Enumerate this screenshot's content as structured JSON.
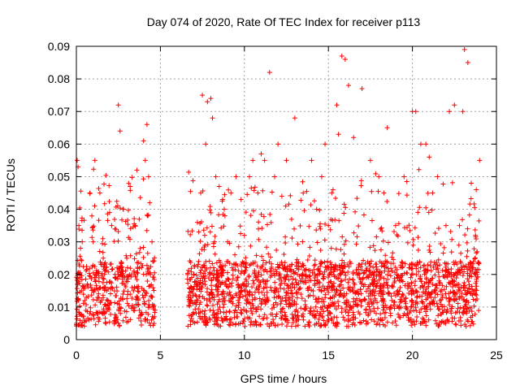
{
  "chart_data": {
    "type": "scatter",
    "title": "Day 074 of 2020, Rate Of TEC Index for receiver p113",
    "xlabel": "GPS time / hours",
    "ylabel": "ROTI / TECUs",
    "xlim": [
      0,
      25
    ],
    "ylim": [
      0,
      0.09
    ],
    "xticks": [
      "0",
      "5",
      "10",
      "15",
      "20",
      "25"
    ],
    "yticks": [
      "0",
      "0.01",
      "0.02",
      "0.03",
      "0.04",
      "0.05",
      "0.06",
      "0.07",
      "0.08",
      "0.09"
    ],
    "grid": true,
    "marker": "plus",
    "color": "#ff0000",
    "data_gap_hours": [
      4.7,
      6.6
    ],
    "series": [
      {
        "x": [
          0.05,
          0.1,
          0.15,
          0.2,
          0.3,
          0.35,
          0.5,
          0.8,
          1.0,
          1.1,
          1.2,
          1.4,
          1.6,
          1.8,
          2.1,
          2.3,
          2.5,
          2.6,
          2.7,
          2.8,
          3.0,
          3.2,
          3.4,
          3.5,
          3.6,
          3.8,
          4.0,
          4.1,
          4.2,
          4.3,
          4.4,
          4.5,
          6.8,
          7.0,
          7.2,
          7.4,
          7.5,
          7.7,
          7.8,
          8.0,
          8.1,
          8.3,
          8.5,
          8.8,
          9.0,
          9.2,
          9.5,
          9.8,
          10.0,
          10.3,
          10.5,
          10.8,
          11.0,
          11.2,
          11.5,
          11.8,
          12.0,
          12.5,
          13.0,
          13.5,
          14.0,
          14.3,
          14.6,
          14.8,
          15.0,
          15.2,
          15.5,
          15.6,
          15.8,
          16.0,
          16.2,
          16.5,
          17.0,
          17.5,
          18.0,
          18.3,
          18.5,
          19.0,
          19.5,
          20.0,
          20.2,
          20.5,
          20.8,
          21.0,
          21.2,
          21.5,
          22.0,
          22.2,
          22.5,
          22.8,
          23.0,
          23.1,
          23.3,
          23.5,
          23.8,
          24.0
        ],
        "y": [
          0.055,
          0.053,
          0.035,
          0.02,
          0.015,
          0.03,
          0.012,
          0.045,
          0.03,
          0.055,
          0.02,
          0.045,
          0.025,
          0.015,
          0.035,
          0.02,
          0.072,
          0.064,
          0.02,
          0.04,
          0.025,
          0.047,
          0.015,
          0.035,
          0.052,
          0.028,
          0.061,
          0.055,
          0.066,
          0.05,
          0.02,
          0.03,
          0.012,
          0.02,
          0.036,
          0.045,
          0.075,
          0.06,
          0.073,
          0.074,
          0.068,
          0.05,
          0.047,
          0.04,
          0.03,
          0.045,
          0.05,
          0.043,
          0.032,
          0.05,
          0.055,
          0.045,
          0.057,
          0.055,
          0.082,
          0.05,
          0.06,
          0.055,
          0.068,
          0.045,
          0.055,
          0.04,
          0.05,
          0.06,
          0.035,
          0.045,
          0.072,
          0.063,
          0.087,
          0.086,
          0.078,
          0.062,
          0.077,
          0.055,
          0.05,
          0.045,
          0.065,
          0.035,
          0.05,
          0.07,
          0.07,
          0.06,
          0.06,
          0.056,
          0.045,
          0.05,
          0.035,
          0.07,
          0.072,
          0.035,
          0.07,
          0.089,
          0.085,
          0.048,
          0.046,
          0.055
        ]
      }
    ]
  }
}
